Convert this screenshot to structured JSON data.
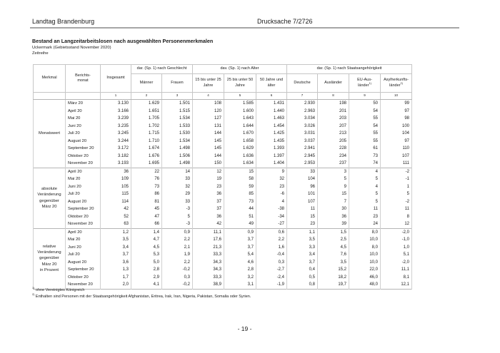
{
  "page": {
    "header_left": "Landtag Brandenburg",
    "header_right": "Drucksache 7/2726",
    "page_number": "- 19 -"
  },
  "doc": {
    "title": "Bestand an Langzeitarbeitslosen nach ausgewählten Personenmerkmalen",
    "subtitle": "Uckermark (Gebietsstand November 2020)",
    "series": "Zeitreihe"
  },
  "table": {
    "merkmal_header": "Merkmal",
    "monat_header": "Berichts-\nmonat",
    "insgesamt_header": "Insgesamt",
    "groups": [
      "dar. (Sp. 1) nach Geschlecht",
      "dav. (Sp. 1) nach Alter",
      "dar. (Sp. 1) nach Staatsangehörigkeit"
    ],
    "columns": [
      {
        "text": "Männer"
      },
      {
        "text": "Frauen"
      },
      {
        "text": "15 bis unter 25\nJahre"
      },
      {
        "text": "25 bis unter 50\nJahre"
      },
      {
        "text": "50 Jahre und\nälter"
      },
      {
        "text": "Deutsche"
      },
      {
        "text": "Ausländer"
      },
      {
        "text": "EU-Aus-\nländer",
        "sup": "1)"
      },
      {
        "text": "Asylherkunfts-\nländer",
        "sup": "2)"
      }
    ],
    "column_numbers": [
      "1",
      "2",
      "3",
      "4",
      "5",
      "6",
      "7",
      "8",
      "9",
      "10"
    ],
    "blocks": [
      {
        "label_lines": [
          "Monatswert"
        ],
        "rows": [
          {
            "month": "März 20",
            "values": [
              "3.130",
              "1.629",
              "1.501",
              "108",
              "1.585",
              "1.431",
              "2.930",
              "198",
              "50",
              "99"
            ]
          },
          {
            "month": "April 20",
            "values": [
              "3.166",
              "1.651",
              "1.515",
              "120",
              "1.600",
              "1.440",
              "2.963",
              "201",
              "54",
              "97"
            ]
          },
          {
            "month": "Mai 20",
            "values": [
              "3.239",
              "1.705",
              "1.534",
              "127",
              "1.643",
              "1.463",
              "3.034",
              "203",
              "55",
              "98"
            ]
          },
          {
            "month": "Juni 20",
            "values": [
              "3.235",
              "1.702",
              "1.533",
              "131",
              "1.644",
              "1.454",
              "3.026",
              "207",
              "54",
              "100"
            ]
          },
          {
            "month": "Juli 20",
            "values": [
              "3.245",
              "1.715",
              "1.530",
              "144",
              "1.670",
              "1.425",
              "3.031",
              "213",
              "55",
              "104"
            ]
          },
          {
            "month": "August 20",
            "values": [
              "3.244",
              "1.710",
              "1.534",
              "145",
              "1.658",
              "1.435",
              "3.037",
              "205",
              "55",
              "97"
            ]
          },
          {
            "month": "September 20",
            "values": [
              "3.172",
              "1.674",
              "1.498",
              "145",
              "1.629",
              "1.393",
              "2.941",
              "228",
              "61",
              "110"
            ]
          },
          {
            "month": "Oktober 20",
            "values": [
              "3.182",
              "1.676",
              "1.506",
              "144",
              "1.636",
              "1.397",
              "2.945",
              "234",
              "73",
              "107"
            ]
          },
          {
            "month": "November 20",
            "values": [
              "3.193",
              "1.695",
              "1.498",
              "150",
              "1.634",
              "1.404",
              "2.953",
              "237",
              "74",
              "111"
            ]
          }
        ]
      },
      {
        "label_lines": [
          "absolute",
          "Veränderung",
          "gegenüber",
          "März 20"
        ],
        "rows": [
          {
            "month": "April 20",
            "values": [
              "36",
              "22",
              "14",
              "12",
              "15",
              "9",
              "33",
              "3",
              "4",
              "-2"
            ]
          },
          {
            "month": "Mai 20",
            "values": [
              "109",
              "76",
              "33",
              "19",
              "58",
              "32",
              "104",
              "5",
              "5",
              "-1"
            ]
          },
          {
            "month": "Juni 20",
            "values": [
              "105",
              "73",
              "32",
              "23",
              "59",
              "23",
              "96",
              "9",
              "4",
              "1"
            ]
          },
          {
            "month": "Juli 20",
            "values": [
              "115",
              "86",
              "29",
              "36",
              "85",
              "-6",
              "101",
              "15",
              "5",
              "5"
            ]
          },
          {
            "month": "August 20",
            "values": [
              "114",
              "81",
              "33",
              "37",
              "73",
              "4",
              "107",
              "7",
              "5",
              "-2"
            ]
          },
          {
            "month": "September 20",
            "values": [
              "42",
              "45",
              "-3",
              "37",
              "44",
              "-38",
              "11",
              "30",
              "11",
              "11"
            ]
          },
          {
            "month": "Oktober 20",
            "values": [
              "52",
              "47",
              "5",
              "36",
              "51",
              "-34",
              "15",
              "36",
              "23",
              "8"
            ]
          },
          {
            "month": "November 20",
            "values": [
              "63",
              "66",
              "-3",
              "42",
              "49",
              "-27",
              "23",
              "39",
              "24",
              "12"
            ]
          }
        ]
      },
      {
        "label_lines": [
          "relative",
          "Veränderung",
          "gegenüber",
          "März 20",
          "in Prozent"
        ],
        "rows": [
          {
            "month": "April 20",
            "values": [
              "1,2",
              "1,4",
              "0,9",
              "11,1",
              "0,9",
              "0,6",
              "1,1",
              "1,5",
              "8,0",
              "-2,0"
            ]
          },
          {
            "month": "Mai 20",
            "values": [
              "3,5",
              "4,7",
              "2,2",
              "17,6",
              "3,7",
              "2,2",
              "3,5",
              "2,5",
              "10,0",
              "-1,0"
            ]
          },
          {
            "month": "Juni 20",
            "values": [
              "3,4",
              "4,5",
              "2,1",
              "21,3",
              "3,7",
              "1,6",
              "3,3",
              "4,5",
              "8,0",
              "1,0"
            ]
          },
          {
            "month": "Juli 20",
            "values": [
              "3,7",
              "5,3",
              "1,9",
              "33,3",
              "5,4",
              "-0,4",
              "3,4",
              "7,6",
              "10,0",
              "5,1"
            ]
          },
          {
            "month": "August 20",
            "values": [
              "3,6",
              "5,0",
              "2,2",
              "34,3",
              "4,6",
              "0,3",
              "3,7",
              "3,5",
              "10,0",
              "-2,0"
            ]
          },
          {
            "month": "September 20",
            "values": [
              "1,3",
              "2,8",
              "-0,2",
              "34,3",
              "2,8",
              "-2,7",
              "0,4",
              "15,2",
              "22,0",
              "11,1"
            ]
          },
          {
            "month": "Oktober 20",
            "values": [
              "1,7",
              "2,9",
              "0,3",
              "33,3",
              "3,2",
              "-2,4",
              "0,5",
              "18,2",
              "46,0",
              "8,1"
            ]
          },
          {
            "month": "November 20",
            "values": [
              "2,0",
              "4,1",
              "-0,2",
              "38,9",
              "3,1",
              "-1,9",
              "0,8",
              "19,7",
              "48,0",
              "12,1"
            ]
          }
        ]
      }
    ]
  },
  "footnotes": [
    {
      "sup": "1)",
      "text": "ohne Vereinigtes Königreich"
    },
    {
      "sup": "2)",
      "text": "Enthalten sind Personen mit der Staatsangehörigkeit Afghanistan, Eritrea, Irak, Iran, Nigeria, Pakistan, Somalia oder Syrien."
    }
  ]
}
